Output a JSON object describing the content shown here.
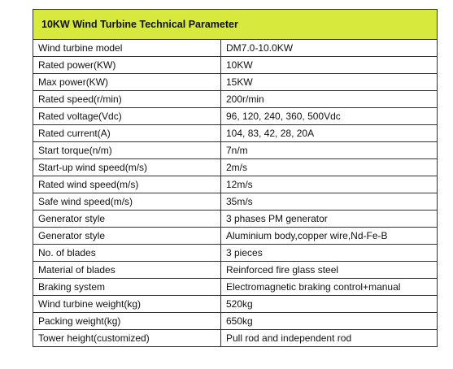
{
  "table": {
    "title": "10KW Wind Turbine Technical Parameter",
    "rows": [
      {
        "param": "Wind turbine model",
        "value": "DM7.0-10.0KW"
      },
      {
        "param": "Rated power(KW)",
        "value": "10KW"
      },
      {
        "param": "Max power(KW)",
        "value": "15KW"
      },
      {
        "param": "Rated speed(r/min)",
        "value": "200r/min"
      },
      {
        "param": "Rated voltage(Vdc)",
        "value": "96, 120, 240, 360, 500Vdc"
      },
      {
        "param": "Rated current(A)",
        "value": "104, 83, 42, 28, 20A"
      },
      {
        "param": "Start torque(n/m)",
        "value": "7n/m"
      },
      {
        "param": "Start-up wind speed(m/s)",
        "value": "2m/s"
      },
      {
        "param": "Rated wind speed(m/s)",
        "value": "12m/s"
      },
      {
        "param": "Safe wind speed(m/s)",
        "value": "35m/s"
      },
      {
        "param": "Generator style",
        "value": "3 phases PM generator"
      },
      {
        "param": "Generator style",
        "value": "Aluminium body,copper wire,Nd-Fe-B"
      },
      {
        "param": "No. of blades",
        "value": "3 pieces"
      },
      {
        "param": "Material of blades",
        "value": "Reinforced fire glass steel"
      },
      {
        "param": "Braking system",
        "value": "Electromagnetic braking control+manual"
      },
      {
        "param": "Wind turbine weight(kg)",
        "value": "520kg"
      },
      {
        "param": "Packing weight(kg)",
        "value": "650kg"
      },
      {
        "param": "Tower height(customized)",
        "value": "Pull rod and independent rod"
      }
    ]
  },
  "colors": {
    "title_background": "#d7e93d",
    "border": "#333333"
  }
}
